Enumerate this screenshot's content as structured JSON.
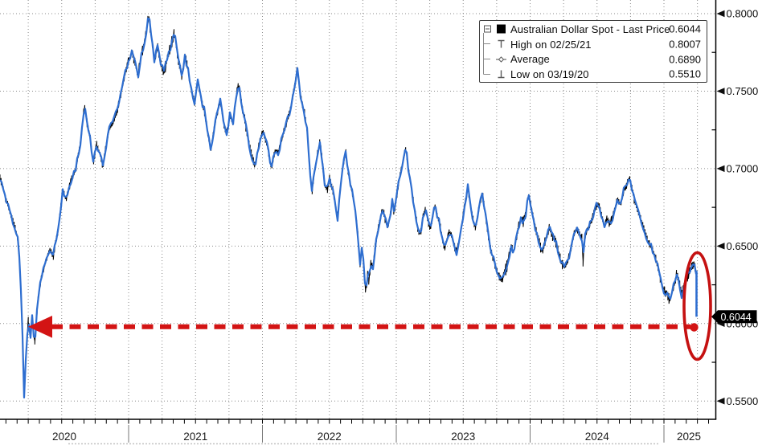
{
  "chart_data": {
    "type": "line",
    "title": "Australian Dollar Spot - Last Price",
    "x_axis": {
      "tick_labels": [
        "2020",
        "2021",
        "2022",
        "2023",
        "2024",
        "2025"
      ],
      "minor_tick": "monthly",
      "gridlines": "quarterly-dotted"
    },
    "y_axis": {
      "side": "right",
      "min": 0.55,
      "max": 0.8,
      "major_tick": 0.05,
      "minor_tick": 0.025,
      "tick_labels": [
        "0.8000",
        "0.7500",
        "0.7000",
        "0.6500",
        "0.6000",
        "0.5500"
      ]
    },
    "stats": {
      "last_price": 0.6044,
      "high": {
        "date": "02/25/21",
        "value": 0.8007
      },
      "average": 0.689,
      "low": {
        "date": "03/19/20",
        "value": 0.551
      }
    },
    "series": [
      {
        "name": "Australian Dollar Spot - Last Price",
        "color": "#000000"
      },
      {
        "name": "price overlay",
        "color": "#2e6ed0"
      }
    ],
    "waypoints": [
      [
        0,
        0.694
      ],
      [
        6,
        0.683
      ],
      [
        12,
        0.672
      ],
      [
        18,
        0.663
      ],
      [
        22,
        0.655
      ],
      [
        25,
        0.635
      ],
      [
        28,
        0.592
      ],
      [
        30,
        0.551
      ],
      [
        32,
        0.577
      ],
      [
        35,
        0.603
      ],
      [
        38,
        0.592
      ],
      [
        40,
        0.607
      ],
      [
        43,
        0.586
      ],
      [
        47,
        0.615
      ],
      [
        52,
        0.632
      ],
      [
        57,
        0.64
      ],
      [
        62,
        0.648
      ],
      [
        66,
        0.643
      ],
      [
        72,
        0.66
      ],
      [
        78,
        0.686
      ],
      [
        82,
        0.68
      ],
      [
        88,
        0.692
      ],
      [
        94,
        0.699
      ],
      [
        100,
        0.716
      ],
      [
        105,
        0.741
      ],
      [
        108,
        0.73
      ],
      [
        112,
        0.721
      ],
      [
        116,
        0.703
      ],
      [
        120,
        0.716
      ],
      [
        124,
        0.71
      ],
      [
        128,
        0.701
      ],
      [
        132,
        0.715
      ],
      [
        136,
        0.726
      ],
      [
        141,
        0.73
      ],
      [
        146,
        0.738
      ],
      [
        152,
        0.752
      ],
      [
        157,
        0.765
      ],
      [
        160,
        0.77
      ],
      [
        164,
        0.775
      ],
      [
        168,
        0.768
      ],
      [
        172,
        0.76
      ],
      [
        176,
        0.774
      ],
      [
        180,
        0.782
      ],
      [
        185,
        0.799
      ],
      [
        188,
        0.786
      ],
      [
        192,
        0.77
      ],
      [
        196,
        0.779
      ],
      [
        200,
        0.768
      ],
      [
        204,
        0.762
      ],
      [
        208,
        0.771
      ],
      [
        212,
        0.778
      ],
      [
        217,
        0.788
      ],
      [
        221,
        0.772
      ],
      [
        226,
        0.76
      ],
      [
        230,
        0.772
      ],
      [
        234,
        0.764
      ],
      [
        238,
        0.75
      ],
      [
        242,
        0.742
      ],
      [
        246,
        0.757
      ],
      [
        250,
        0.745
      ],
      [
        254,
        0.738
      ],
      [
        258,
        0.724
      ],
      [
        262,
        0.712
      ],
      [
        266,
        0.724
      ],
      [
        270,
        0.735
      ],
      [
        274,
        0.744
      ],
      [
        278,
        0.73
      ],
      [
        282,
        0.722
      ],
      [
        286,
        0.735
      ],
      [
        290,
        0.729
      ],
      [
        294,
        0.747
      ],
      [
        297,
        0.755
      ],
      [
        301,
        0.74
      ],
      [
        305,
        0.73
      ],
      [
        309,
        0.718
      ],
      [
        313,
        0.708
      ],
      [
        317,
        0.702
      ],
      [
        321,
        0.712
      ],
      [
        324,
        0.72
      ],
      [
        327,
        0.724
      ],
      [
        331,
        0.718
      ],
      [
        335,
        0.708
      ],
      [
        338,
        0.7
      ],
      [
        342,
        0.712
      ],
      [
        346,
        0.71
      ],
      [
        350,
        0.718
      ],
      [
        354,
        0.726
      ],
      [
        358,
        0.732
      ],
      [
        362,
        0.74
      ],
      [
        366,
        0.752
      ],
      [
        370,
        0.765
      ],
      [
        373,
        0.75
      ],
      [
        376,
        0.742
      ],
      [
        379,
        0.735
      ],
      [
        382,
        0.726
      ],
      [
        385,
        0.7
      ],
      [
        388,
        0.684
      ],
      [
        391,
        0.697
      ],
      [
        394,
        0.706
      ],
      [
        398,
        0.718
      ],
      [
        401,
        0.705
      ],
      [
        404,
        0.69
      ],
      [
        407,
        0.686
      ],
      [
        410,
        0.694
      ],
      [
        413,
        0.688
      ],
      [
        416,
        0.68
      ],
      [
        420,
        0.668
      ],
      [
        424,
        0.69
      ],
      [
        427,
        0.702
      ],
      [
        430,
        0.712
      ],
      [
        433,
        0.698
      ],
      [
        436,
        0.69
      ],
      [
        439,
        0.682
      ],
      [
        442,
        0.673
      ],
      [
        445,
        0.66
      ],
      [
        448,
        0.637
      ],
      [
        450,
        0.65
      ],
      [
        452,
        0.642
      ],
      [
        455,
        0.618
      ],
      [
        457,
        0.634
      ],
      [
        459,
        0.626
      ],
      [
        461,
        0.64
      ],
      [
        464,
        0.636
      ],
      [
        467,
        0.65
      ],
      [
        470,
        0.66
      ],
      [
        473,
        0.668
      ],
      [
        476,
        0.674
      ],
      [
        479,
        0.668
      ],
      [
        482,
        0.662
      ],
      [
        485,
        0.668
      ],
      [
        488,
        0.68
      ],
      [
        490,
        0.672
      ],
      [
        492,
        0.678
      ],
      [
        495,
        0.688
      ],
      [
        498,
        0.697
      ],
      [
        501,
        0.704
      ],
      [
        505,
        0.714
      ],
      [
        508,
        0.7
      ],
      [
        511,
        0.69
      ],
      [
        514,
        0.68
      ],
      [
        517,
        0.67
      ],
      [
        520,
        0.66
      ],
      [
        523,
        0.658
      ],
      [
        526,
        0.668
      ],
      [
        529,
        0.674
      ],
      [
        532,
        0.668
      ],
      [
        535,
        0.66
      ],
      [
        538,
        0.668
      ],
      [
        541,
        0.676
      ],
      [
        544,
        0.67
      ],
      [
        547,
        0.664
      ],
      [
        550,
        0.656
      ],
      [
        553,
        0.648
      ],
      [
        556,
        0.654
      ],
      [
        559,
        0.66
      ],
      [
        562,
        0.656
      ],
      [
        565,
        0.65
      ],
      [
        568,
        0.646
      ],
      [
        571,
        0.652
      ],
      [
        574,
        0.662
      ],
      [
        578,
        0.676
      ],
      [
        582,
        0.688
      ],
      [
        585,
        0.678
      ],
      [
        588,
        0.668
      ],
      [
        591,
        0.662
      ],
      [
        594,
        0.668
      ],
      [
        597,
        0.678
      ],
      [
        600,
        0.684
      ],
      [
        603,
        0.674
      ],
      [
        606,
        0.662
      ],
      [
        609,
        0.652
      ],
      [
        612,
        0.645
      ],
      [
        615,
        0.64
      ],
      [
        618,
        0.634
      ],
      [
        621,
        0.63
      ],
      [
        624,
        0.628
      ],
      [
        627,
        0.632
      ],
      [
        630,
        0.636
      ],
      [
        633,
        0.642
      ],
      [
        636,
        0.65
      ],
      [
        639,
        0.646
      ],
      [
        642,
        0.655
      ],
      [
        645,
        0.662
      ],
      [
        648,
        0.668
      ],
      [
        651,
        0.665
      ],
      [
        654,
        0.67
      ],
      [
        657,
        0.684
      ],
      [
        660,
        0.678
      ],
      [
        663,
        0.67
      ],
      [
        666,
        0.662
      ],
      [
        669,
        0.656
      ],
      [
        672,
        0.65
      ],
      [
        675,
        0.646
      ],
      [
        678,
        0.652
      ],
      [
        681,
        0.658
      ],
      [
        684,
        0.662
      ],
      [
        687,
        0.656
      ],
      [
        690,
        0.655
      ],
      [
        694,
        0.648
      ],
      [
        698,
        0.64
      ],
      [
        702,
        0.636
      ],
      [
        706,
        0.64
      ],
      [
        710,
        0.648
      ],
      [
        714,
        0.658
      ],
      [
        718,
        0.662
      ],
      [
        721,
        0.658
      ],
      [
        724,
        0.655
      ],
      [
        725,
        0.636
      ],
      [
        727,
        0.654
      ],
      [
        730,
        0.66
      ],
      [
        734,
        0.664
      ],
      [
        738,
        0.67
      ],
      [
        742,
        0.676
      ],
      [
        745,
        0.678
      ],
      [
        748,
        0.67
      ],
      [
        752,
        0.662
      ],
      [
        755,
        0.668
      ],
      [
        758,
        0.664
      ],
      [
        762,
        0.668
      ],
      [
        765,
        0.674
      ],
      [
        768,
        0.68
      ],
      [
        772,
        0.677
      ],
      [
        776,
        0.686
      ],
      [
        780,
        0.69
      ],
      [
        783,
        0.694
      ],
      [
        786,
        0.688
      ],
      [
        790,
        0.678
      ],
      [
        794,
        0.672
      ],
      [
        798,
        0.666
      ],
      [
        802,
        0.66
      ],
      [
        806,
        0.653
      ],
      [
        810,
        0.65
      ],
      [
        814,
        0.645
      ],
      [
        818,
        0.638
      ],
      [
        822,
        0.628
      ],
      [
        826,
        0.621
      ],
      [
        830,
        0.619
      ],
      [
        833,
        0.615
      ],
      [
        836,
        0.62
      ],
      [
        839,
        0.626
      ],
      [
        842,
        0.632
      ],
      [
        845,
        0.626
      ],
      [
        848,
        0.618
      ],
      [
        851,
        0.625
      ],
      [
        854,
        0.63
      ],
      [
        857,
        0.632
      ],
      [
        860,
        0.636
      ],
      [
        863,
        0.639
      ],
      [
        865,
        0.636
      ],
      [
        866,
        0.633
      ]
    ],
    "final_drop": {
      "x": 866.5,
      "from": 0.634,
      "to": 0.6044
    }
  },
  "legend": {
    "rows": [
      {
        "icon": "series-square",
        "label": "Australian Dollar Spot - Last Price",
        "value": "0.6044"
      },
      {
        "icon": "high-marker",
        "label": "High on 02/25/21",
        "value": "0.8007"
      },
      {
        "icon": "average-marker",
        "label": "Average",
        "value": "0.6890"
      },
      {
        "icon": "low-marker",
        "label": "Low on 03/19/20",
        "value": "0.5510"
      }
    ]
  },
  "annotations": {
    "last_price_badge": "0.6044",
    "arrow_level": 0.6044,
    "highlight_circle": "latest price collapse circled",
    "colors": {
      "annotation_red": "#d31414",
      "ellipse_red": "#c51111",
      "line_blue": "#2e6ed0",
      "line_black": "#000000",
      "grid_gray": "#8a8a8a"
    }
  }
}
